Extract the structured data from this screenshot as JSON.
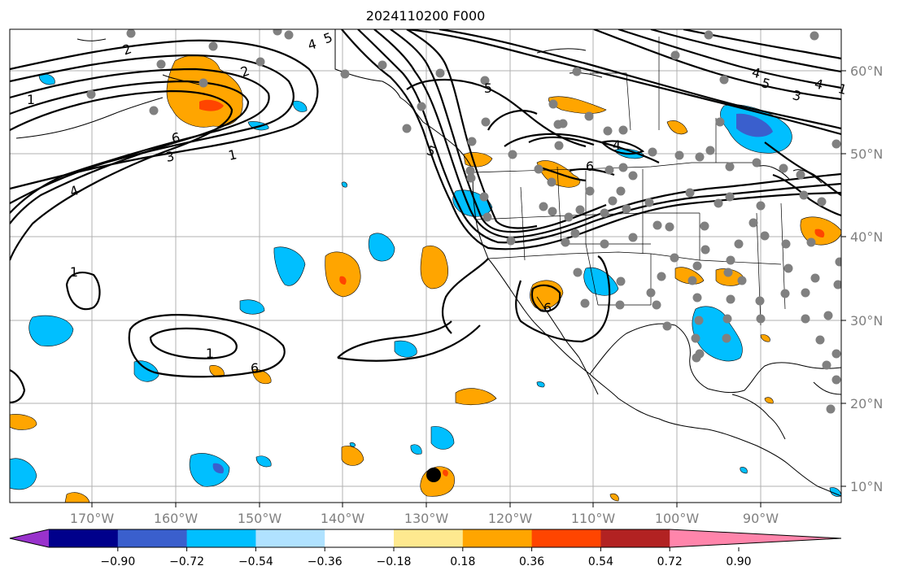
{
  "title": "2024110200 F000",
  "map": {
    "lat_labels": [
      "60°N",
      "50°N",
      "40°N",
      "30°N",
      "20°N",
      "10°N"
    ],
    "lon_labels": [
      "170°W",
      "160°W",
      "150°W",
      "140°W",
      "130°W",
      "120°W",
      "110°W",
      "100°W",
      "90°W"
    ],
    "contour_labels": [
      "2",
      "4",
      "5",
      "6",
      "3",
      "1",
      "4",
      "2",
      "1",
      "1",
      "6",
      "5",
      "1",
      "5",
      "4",
      "6",
      "6",
      "4",
      "5",
      "3",
      "4",
      "1"
    ]
  },
  "colorbar": {
    "tick_labels": [
      "−0.90",
      "−0.72",
      "−0.54",
      "−0.36",
      "−0.18",
      "0.18",
      "0.36",
      "0.54",
      "0.72",
      "0.90"
    ],
    "colors": [
      "#9932cc",
      "#00008b",
      "#3a5fcd",
      "#00bfff",
      "#b0e2ff",
      "#ffffff",
      "#fee98f",
      "#ffa500",
      "#ff4500",
      "#b22222",
      "#ff85ab"
    ]
  }
}
